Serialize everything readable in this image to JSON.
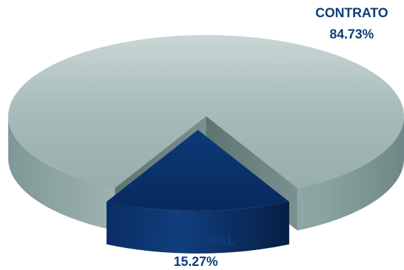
{
  "chart_data": {
    "type": "pie",
    "style": "3d-exploded",
    "series": [
      {
        "categories": [
          "CONTRATO",
          "OCASIONAL"
        ],
        "values": [
          84.73,
          15.27
        ],
        "value_labels": [
          "84.73%",
          "15.27%"
        ],
        "colors": [
          "#a2b8b7",
          "#0a2d63"
        ]
      }
    ]
  }
}
